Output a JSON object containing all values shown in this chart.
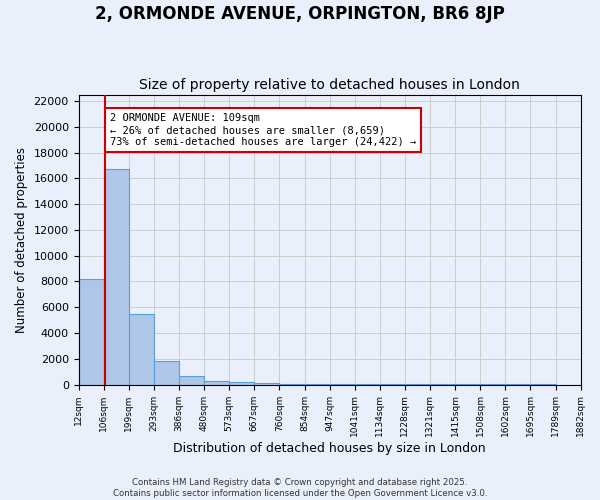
{
  "title1": "2, ORMONDE AVENUE, ORPINGTON, BR6 8JP",
  "title2": "Size of property relative to detached houses in London",
  "xlabel": "Distribution of detached houses by size in London",
  "ylabel": "Number of detached properties",
  "bar_values": [
    8200,
    16700,
    5500,
    1800,
    650,
    300,
    200,
    100,
    80,
    60,
    50,
    40,
    30,
    25,
    20,
    15,
    12,
    10,
    8,
    6
  ],
  "bin_edges": [
    12,
    106,
    199,
    293,
    386,
    480,
    573,
    667,
    760,
    854,
    947,
    1041,
    1134,
    1228,
    1321,
    1415,
    1508,
    1602,
    1695,
    1789,
    1882
  ],
  "bar_color": "#aec6e8",
  "bar_edge_color": "#5a9fd4",
  "grid_color": "#cccccc",
  "bg_color": "#eaf0fb",
  "vline_x": 109,
  "vline_color": "#cc0000",
  "annotation_text": "2 ORMONDE AVENUE: 109sqm\n← 26% of detached houses are smaller (8,659)\n73% of semi-detached houses are larger (24,422) →",
  "annotation_box_color": "#ffffff",
  "annotation_border_color": "#cc0000",
  "ylim": [
    0,
    22500
  ],
  "yticks": [
    0,
    2000,
    4000,
    6000,
    8000,
    10000,
    12000,
    14000,
    16000,
    18000,
    20000,
    22000
  ],
  "footnote": "Contains HM Land Registry data © Crown copyright and database right 2025.\nContains public sector information licensed under the Open Government Licence v3.0.",
  "title1_fontsize": 12,
  "title2_fontsize": 10,
  "xlabel_fontsize": 9,
  "ylabel_fontsize": 8.5
}
